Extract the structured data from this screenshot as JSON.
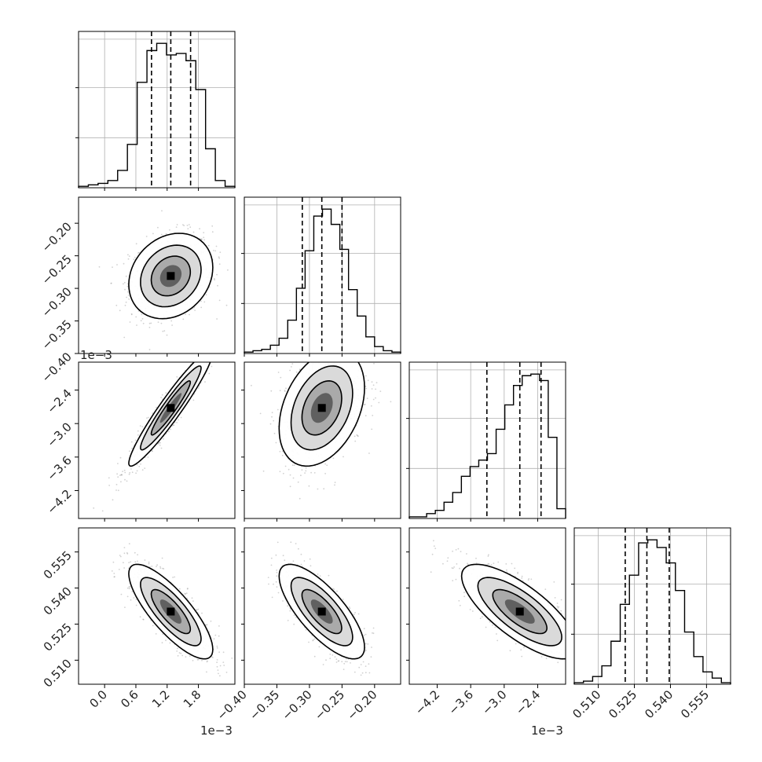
{
  "chart_data": {
    "type": "corner",
    "dimensions": 4,
    "params": [
      {
        "range": [
          -0.0005,
          0.0025
        ],
        "ticks": [
          0.0,
          0.6,
          1.2,
          1.8
        ],
        "tick_labels": [
          "0.0",
          "0.6",
          "1.2",
          "1.8"
        ],
        "offset_label": "1e−3",
        "quantiles": [
          0.0009,
          0.00127,
          0.00165
        ],
        "hist": [
          1,
          2,
          3,
          5,
          12,
          30,
          73,
          95,
          100,
          92,
          93,
          88,
          68,
          27,
          5,
          1
        ]
      },
      {
        "range": [
          -0.4,
          -0.16
        ],
        "ticks": [
          -0.4,
          -0.35,
          -0.3,
          -0.25,
          -0.2
        ],
        "tick_labels": [
          "−0.40",
          "−0.35",
          "−0.30",
          "−0.25",
          "−0.20"
        ],
        "offset_label": "",
        "quantiles": [
          -0.311,
          -0.281,
          -0.25
        ],
        "hist": [
          1,
          2,
          3,
          6,
          11,
          24,
          47,
          74,
          99,
          104,
          93,
          75,
          46,
          27,
          12,
          5,
          2,
          1
        ]
      },
      {
        "range": [
          -0.0047,
          -0.0019
        ],
        "ticks": [
          -4.2,
          -3.6,
          -3.0,
          -2.4
        ],
        "tick_labels": [
          "−4.2",
          "−3.6",
          "−3.0",
          "−2.4"
        ],
        "offset_label": "1e−3",
        "quantiles": [
          -0.00331,
          -0.00272,
          -0.00234
        ],
        "hist": [
          1,
          1,
          3,
          5,
          10,
          16,
          26,
          32,
          36,
          40,
          55,
          70,
          82,
          88,
          89,
          85,
          50,
          6
        ]
      },
      {
        "range": [
          0.5,
          0.565
        ],
        "ticks": [
          0.51,
          0.525,
          0.54,
          0.555
        ],
        "tick_labels": [
          "0.510",
          "0.525",
          "0.540",
          "0.555"
        ],
        "offset_label": "",
        "quantiles": [
          0.5212,
          0.5302,
          0.5395
        ],
        "hist": [
          1,
          2,
          5,
          12,
          28,
          52,
          71,
          92,
          94,
          89,
          79,
          61,
          34,
          18,
          8,
          4,
          1
        ]
      }
    ],
    "ytick_labels": {
      "row1": [
        "−0.40",
        "−0.35",
        "−0.30",
        "−0.25",
        "−0.20"
      ],
      "row2": [
        "−4.2",
        "−3.6",
        "−3.0",
        "−2.4"
      ],
      "row3": [
        "0.510",
        "0.525",
        "0.540",
        "0.555"
      ]
    },
    "row_offset_label": "1e−3",
    "correlations": {
      "1-0": 0.2,
      "2-0": 0.95,
      "2-1": 0.35,
      "3-0": -0.8,
      "3-1": -0.75,
      "3-2": -0.75
    },
    "histogram_grid": true
  }
}
